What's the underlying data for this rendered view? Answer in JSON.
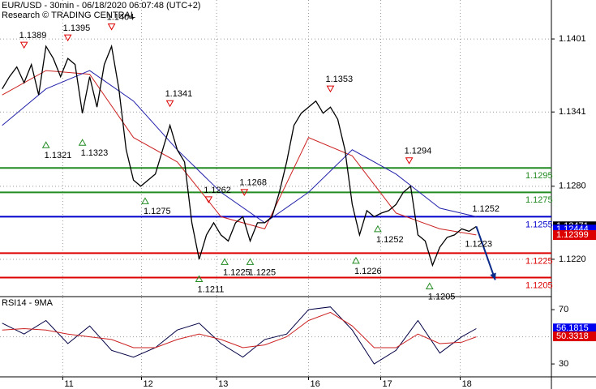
{
  "chart_data": {
    "type": "line",
    "title": "EUR/USD - 30min - 06/18/2020 06:07:48 (UTC+2)",
    "subtitle": "Research © TRADING CENTRAL",
    "xlim": [
      -0.3,
      75.3
    ],
    "ylim": [
      1.119,
      1.1433
    ],
    "yticks": [
      1.1401,
      1.1341,
      {
        "value": 1.128,
        "label": "1.1280"
      },
      {
        "value": 1.122,
        "label": "1.1220"
      }
    ],
    "xticks": [
      {
        "value": 8.3,
        "label": "11"
      },
      {
        "value": 19.1,
        "label": "12"
      },
      {
        "value": 29.4,
        "label": "13"
      },
      {
        "value": 42,
        "label": "16"
      },
      {
        "value": 51.9,
        "label": "17"
      },
      {
        "value": 62.8,
        "label": "18"
      }
    ],
    "grid": true,
    "price": {
      "color": "#000000",
      "values": [
        1.136,
        1.137,
        1.1378,
        1.1365,
        1.138,
        1.1355,
        1.1395,
        1.1385,
        1.137,
        1.1385,
        1.138,
        1.134,
        1.137,
        1.1345,
        1.138,
        1.1395,
        1.136,
        1.131,
        1.1285,
        1.128,
        1.1285,
        1.129,
        1.131,
        1.133,
        1.131,
        1.13,
        1.125,
        1.122,
        1.124,
        1.125,
        1.124,
        1.1235,
        1.125,
        1.1255,
        1.1235,
        1.125,
        1.125,
        1.1255,
        1.1275,
        1.13,
        1.133,
        1.134,
        1.1345,
        1.135,
        1.134,
        1.1345,
        1.1335,
        1.131,
        1.1265,
        1.124,
        1.126,
        1.1255,
        1.1258,
        1.126,
        1.1265,
        1.1275,
        1.128,
        1.124,
        1.1235,
        1.1215,
        1.123,
        1.1238,
        1.124,
        1.1245,
        1.1243,
        1.1247
      ]
    },
    "averages": [
      {
        "color": "#cc2222",
        "x": [
          0,
          6,
          12,
          18,
          24,
          30,
          36,
          42,
          48,
          54,
          60,
          65
        ],
        "values": [
          1.1355,
          1.1375,
          1.1372,
          1.132,
          1.13,
          1.1255,
          1.1245,
          1.132,
          1.1305,
          1.1258,
          1.1245,
          1.124
        ]
      },
      {
        "color": "#2222aa",
        "x": [
          0,
          6,
          12,
          18,
          24,
          30,
          36,
          42,
          48,
          54,
          60,
          65
        ],
        "values": [
          1.133,
          1.136,
          1.1375,
          1.135,
          1.131,
          1.1275,
          1.125,
          1.1275,
          1.131,
          1.129,
          1.1262,
          1.1255
        ]
      }
    ],
    "levels": [
      {
        "value": 1.1295,
        "color": "#228b22"
      },
      {
        "value": 1.1275,
        "color": "#228b22"
      },
      {
        "value": 1.1255,
        "color": "#0000cc"
      },
      {
        "value": 1.1225,
        "color": "#dd0000"
      },
      {
        "value": 1.1205,
        "color": "#dd0000"
      }
    ],
    "tags": [
      {
        "value": 1.12471,
        "color": "#000000"
      },
      {
        "value": 1.12444,
        "color": "#0000ee"
      },
      {
        "value": 1.12399,
        "color": "#dd0000"
      }
    ],
    "annotations": [
      {
        "price": 1.1389,
        "x": 3,
        "kind": "high"
      },
      {
        "price": 1.1395,
        "x": 9,
        "kind": "high"
      },
      {
        "price": 1.1404,
        "x": 15,
        "kind": "high"
      },
      {
        "price": 1.1321,
        "x": 6,
        "kind": "low"
      },
      {
        "price": 1.1323,
        "x": 11,
        "kind": "low"
      },
      {
        "price": 1.1341,
        "x": 23,
        "kind": "high"
      },
      {
        "price": 1.1275,
        "x": 19.6,
        "kind": "low"
      },
      {
        "price": 1.1262,
        "x": 28.3,
        "kind": "high"
      },
      {
        "price": 1.1268,
        "x": 33.2,
        "kind": "high"
      },
      {
        "price": 1.1211,
        "x": 27,
        "kind": "low"
      },
      {
        "price": 1.1225,
        "x": 30.5,
        "kind": "low"
      },
      {
        "price": 1.1225,
        "x": 34,
        "kind": "low"
      },
      {
        "price": 1.1353,
        "x": 45,
        "kind": "high"
      },
      {
        "price": 1.1226,
        "x": 48.5,
        "kind": "low"
      },
      {
        "price": 1.1252,
        "x": 51.5,
        "kind": "low"
      },
      {
        "price": 1.1294,
        "x": 55.8,
        "kind": "high"
      },
      {
        "price": 1.1205,
        "x": 58.6,
        "kind": "low"
      }
    ],
    "targets": [
      {
        "price": 1.1252,
        "x": 66
      },
      {
        "price": 1.1223,
        "x": 65
      }
    ],
    "forecast": {
      "x": [
        65,
        67.6
      ],
      "values": [
        1.1247,
        1.1203
      ],
      "color": "#0a2a8a"
    },
    "rsi": {
      "label": "RSI14 - 9MA",
      "ylim": [
        20.5,
        79
      ],
      "yticks": [
        30,
        70
      ],
      "midline": 50,
      "series": [
        {
          "color": "#000044",
          "x": [
            0,
            3,
            6,
            9,
            12,
            15,
            18,
            21,
            24,
            27,
            30,
            33,
            36,
            39,
            42,
            45,
            48,
            51,
            54,
            57,
            60,
            63,
            65
          ],
          "values": [
            60,
            52,
            62,
            45,
            58,
            40,
            35,
            42,
            55,
            60,
            45,
            35,
            48,
            52,
            70,
            72,
            55,
            30,
            40,
            62,
            38,
            50,
            56
          ]
        },
        {
          "color": "#cc2222",
          "x": [
            0,
            3,
            6,
            9,
            12,
            15,
            18,
            21,
            24,
            27,
            30,
            33,
            36,
            39,
            42,
            45,
            48,
            51,
            54,
            57,
            60,
            63,
            65
          ],
          "values": [
            55,
            56,
            55,
            52,
            50,
            48,
            42,
            42,
            48,
            52,
            48,
            42,
            44,
            50,
            62,
            68,
            58,
            42,
            42,
            52,
            45,
            46,
            50
          ]
        }
      ],
      "tags": [
        {
          "value": 56.1815,
          "color": "#0000ee"
        },
        {
          "value": 50.3318,
          "color": "#dd0000"
        }
      ]
    }
  }
}
